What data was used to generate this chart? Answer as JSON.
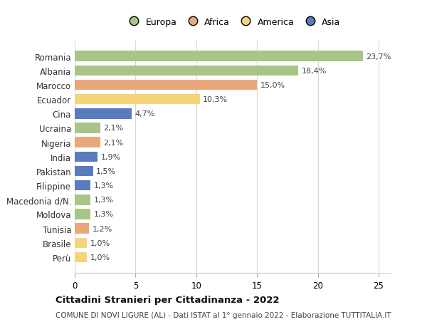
{
  "categories": [
    "Romania",
    "Albania",
    "Marocco",
    "Ecuador",
    "Cina",
    "Ucraina",
    "Nigeria",
    "India",
    "Pakistan",
    "Filippine",
    "Macedonia d/N.",
    "Moldova",
    "Tunisia",
    "Brasile",
    "Perù"
  ],
  "values": [
    23.7,
    18.4,
    15.0,
    10.3,
    4.7,
    2.1,
    2.1,
    1.9,
    1.5,
    1.3,
    1.3,
    1.3,
    1.2,
    1.0,
    1.0
  ],
  "labels": [
    "23,7%",
    "18,4%",
    "15,0%",
    "10,3%",
    "4,7%",
    "2,1%",
    "2,1%",
    "1,9%",
    "1,5%",
    "1,3%",
    "1,3%",
    "1,3%",
    "1,2%",
    "1,0%",
    "1,0%"
  ],
  "colors": [
    "#a8c486",
    "#a8c486",
    "#e8a87c",
    "#f5d57a",
    "#5b7bbf",
    "#a8c486",
    "#e8a87c",
    "#5b7bbf",
    "#5b7bbf",
    "#5b7bbf",
    "#a8c486",
    "#a8c486",
    "#e8a87c",
    "#f5d57a",
    "#f5d57a"
  ],
  "legend_labels": [
    "Europa",
    "Africa",
    "America",
    "Asia"
  ],
  "legend_colors": [
    "#a8c486",
    "#e8a87c",
    "#f5d57a",
    "#5b7bbf"
  ],
  "title": "Cittadini Stranieri per Cittadinanza - 2022",
  "subtitle": "COMUNE DI NOVI LIGURE (AL) - Dati ISTAT al 1° gennaio 2022 - Elaborazione TUTTITALIA.IT",
  "xlim": [
    0,
    26
  ],
  "xticks": [
    0,
    5,
    10,
    15,
    20,
    25
  ],
  "background_color": "#ffffff",
  "bar_height": 0.72,
  "grid_color": "#d8d8d8",
  "label_fontsize": 8.0,
  "tick_fontsize": 8.5,
  "title_fontsize": 9.5,
  "subtitle_fontsize": 7.5
}
